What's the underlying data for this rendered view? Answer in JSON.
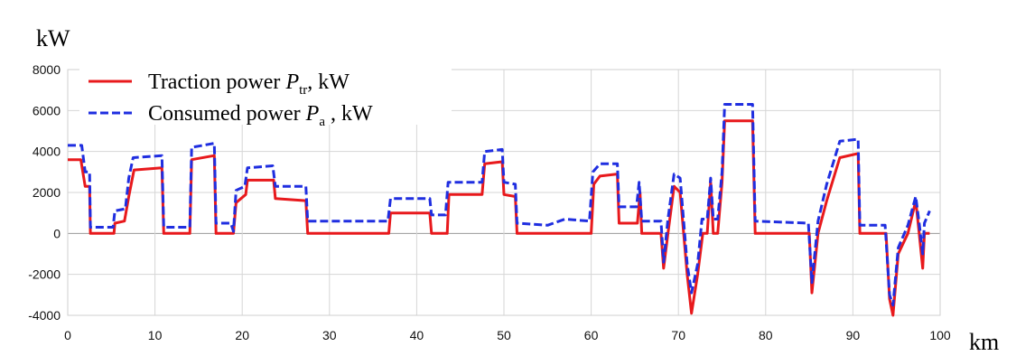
{
  "chart_data": {
    "type": "line",
    "xlabel": "km",
    "ylabel": "kW",
    "xlim": [
      0,
      100
    ],
    "ylim": [
      -4000,
      8000
    ],
    "x_ticks": [
      0,
      10,
      20,
      30,
      40,
      50,
      60,
      70,
      80,
      90,
      100
    ],
    "y_ticks": [
      -4000,
      -2000,
      0,
      2000,
      4000,
      6000,
      8000
    ],
    "x_tick_labels": [
      "0",
      "10",
      "20",
      "30",
      "40",
      "50",
      "60",
      "70",
      "80",
      "90",
      "100"
    ],
    "y_tick_labels": [
      "-4000",
      "-2000",
      "0",
      "2000",
      "4000",
      "6000",
      "8000"
    ],
    "grid": true,
    "legend_position": "top-left",
    "series": [
      {
        "name": "Traction power",
        "symbol": "P",
        "subscript": "tr",
        "suffix": ",  kW",
        "color": "#e8191c",
        "style": "solid",
        "points": [
          [
            0,
            3600
          ],
          [
            1.5,
            3600
          ],
          [
            2,
            2300
          ],
          [
            2.5,
            2300
          ],
          [
            2.6,
            0
          ],
          [
            5.3,
            0
          ],
          [
            5.4,
            500
          ],
          [
            6.5,
            600
          ],
          [
            7,
            1800
          ],
          [
            7.6,
            3100
          ],
          [
            10.8,
            3200
          ],
          [
            11,
            0
          ],
          [
            14,
            0
          ],
          [
            14.2,
            3600
          ],
          [
            16.8,
            3800
          ],
          [
            17,
            0
          ],
          [
            19,
            0
          ],
          [
            19.3,
            1500
          ],
          [
            20.4,
            1900
          ],
          [
            20.6,
            2600
          ],
          [
            23.6,
            2600
          ],
          [
            23.8,
            1700
          ],
          [
            27.3,
            1600
          ],
          [
            27.5,
            0
          ],
          [
            36.8,
            0
          ],
          [
            37,
            1000
          ],
          [
            41.5,
            1000
          ],
          [
            41.7,
            0
          ],
          [
            43.5,
            0
          ],
          [
            43.7,
            1900
          ],
          [
            47.5,
            1900
          ],
          [
            47.8,
            3400
          ],
          [
            49.8,
            3500
          ],
          [
            50,
            1900
          ],
          [
            51.3,
            1800
          ],
          [
            51.5,
            0
          ],
          [
            60,
            0
          ],
          [
            60.3,
            2400
          ],
          [
            61,
            2800
          ],
          [
            63,
            2900
          ],
          [
            63.2,
            500
          ],
          [
            65.3,
            500
          ],
          [
            65.6,
            2000
          ],
          [
            65.8,
            0
          ],
          [
            68,
            0
          ],
          [
            68.3,
            -1700
          ],
          [
            68.8,
            0
          ],
          [
            69.5,
            2300
          ],
          [
            70.2,
            2000
          ],
          [
            71,
            -2000
          ],
          [
            71.5,
            -3900
          ],
          [
            72.2,
            -2000
          ],
          [
            72.8,
            0
          ],
          [
            73.3,
            0
          ],
          [
            73.7,
            2500
          ],
          [
            74,
            0
          ],
          [
            74.5,
            0
          ],
          [
            75,
            2500
          ],
          [
            75.3,
            5500
          ],
          [
            78.5,
            5500
          ],
          [
            78.8,
            0
          ],
          [
            85,
            0
          ],
          [
            85.3,
            -2900
          ],
          [
            86,
            0
          ],
          [
            87,
            1600
          ],
          [
            88.5,
            3700
          ],
          [
            90.6,
            3900
          ],
          [
            90.8,
            0
          ],
          [
            93.8,
            0
          ],
          [
            94.2,
            -3200
          ],
          [
            94.6,
            -4000
          ],
          [
            95.2,
            -1000
          ],
          [
            96.3,
            0
          ],
          [
            97.2,
            1600
          ],
          [
            97.6,
            0
          ],
          [
            98,
            -1700
          ],
          [
            98.2,
            0
          ],
          [
            98.8,
            0
          ]
        ]
      },
      {
        "name": "Consumed power",
        "symbol": "P",
        "subscript": "a",
        "suffix": " ,  kW",
        "color": "#1f2ee0",
        "style": "dashed",
        "points": [
          [
            0,
            4300
          ],
          [
            1.6,
            4300
          ],
          [
            2,
            3000
          ],
          [
            2.5,
            3000
          ],
          [
            2.6,
            300
          ],
          [
            5.2,
            300
          ],
          [
            5.4,
            1100
          ],
          [
            6.6,
            1200
          ],
          [
            7,
            2700
          ],
          [
            7.5,
            3700
          ],
          [
            10.8,
            3800
          ],
          [
            11,
            300
          ],
          [
            14,
            300
          ],
          [
            14.2,
            4200
          ],
          [
            16.8,
            4400
          ],
          [
            17,
            500
          ],
          [
            18.7,
            500
          ],
          [
            19,
            100
          ],
          [
            19.3,
            2100
          ],
          [
            20.3,
            2300
          ],
          [
            20.6,
            3200
          ],
          [
            23.5,
            3300
          ],
          [
            23.8,
            2300
          ],
          [
            27.3,
            2300
          ],
          [
            27.5,
            600
          ],
          [
            36.7,
            600
          ],
          [
            37,
            1700
          ],
          [
            41.5,
            1700
          ],
          [
            41.7,
            900
          ],
          [
            43.3,
            900
          ],
          [
            43.6,
            2500
          ],
          [
            47.5,
            2500
          ],
          [
            47.8,
            4000
          ],
          [
            49.8,
            4100
          ],
          [
            50,
            2500
          ],
          [
            51.3,
            2400
          ],
          [
            51.5,
            500
          ],
          [
            55,
            400
          ],
          [
            57,
            700
          ],
          [
            59.8,
            600
          ],
          [
            60.2,
            3000
          ],
          [
            61,
            3400
          ],
          [
            63,
            3400
          ],
          [
            63.2,
            1300
          ],
          [
            65.2,
            1300
          ],
          [
            65.5,
            2500
          ],
          [
            65.8,
            600
          ],
          [
            68,
            600
          ],
          [
            68.3,
            -1400
          ],
          [
            68.8,
            700
          ],
          [
            69.5,
            2900
          ],
          [
            70.2,
            2700
          ],
          [
            71,
            -1500
          ],
          [
            71.5,
            -2900
          ],
          [
            72.2,
            -1500
          ],
          [
            72.7,
            700
          ],
          [
            73.3,
            700
          ],
          [
            73.7,
            2700
          ],
          [
            74,
            700
          ],
          [
            74.5,
            700
          ],
          [
            75,
            3000
          ],
          [
            75.3,
            6300
          ],
          [
            78.5,
            6300
          ],
          [
            78.8,
            600
          ],
          [
            84.9,
            500
          ],
          [
            85.3,
            -2400
          ],
          [
            86,
            600
          ],
          [
            87,
            2400
          ],
          [
            88.5,
            4500
          ],
          [
            90.6,
            4600
          ],
          [
            90.8,
            400
          ],
          [
            93.7,
            400
          ],
          [
            94.2,
            -3000
          ],
          [
            94.6,
            -3500
          ],
          [
            95.2,
            -700
          ],
          [
            96.3,
            400
          ],
          [
            97.2,
            1800
          ],
          [
            97.6,
            500
          ],
          [
            98,
            -1000
          ],
          [
            98.2,
            500
          ],
          [
            98.8,
            1100
          ]
        ]
      }
    ]
  }
}
